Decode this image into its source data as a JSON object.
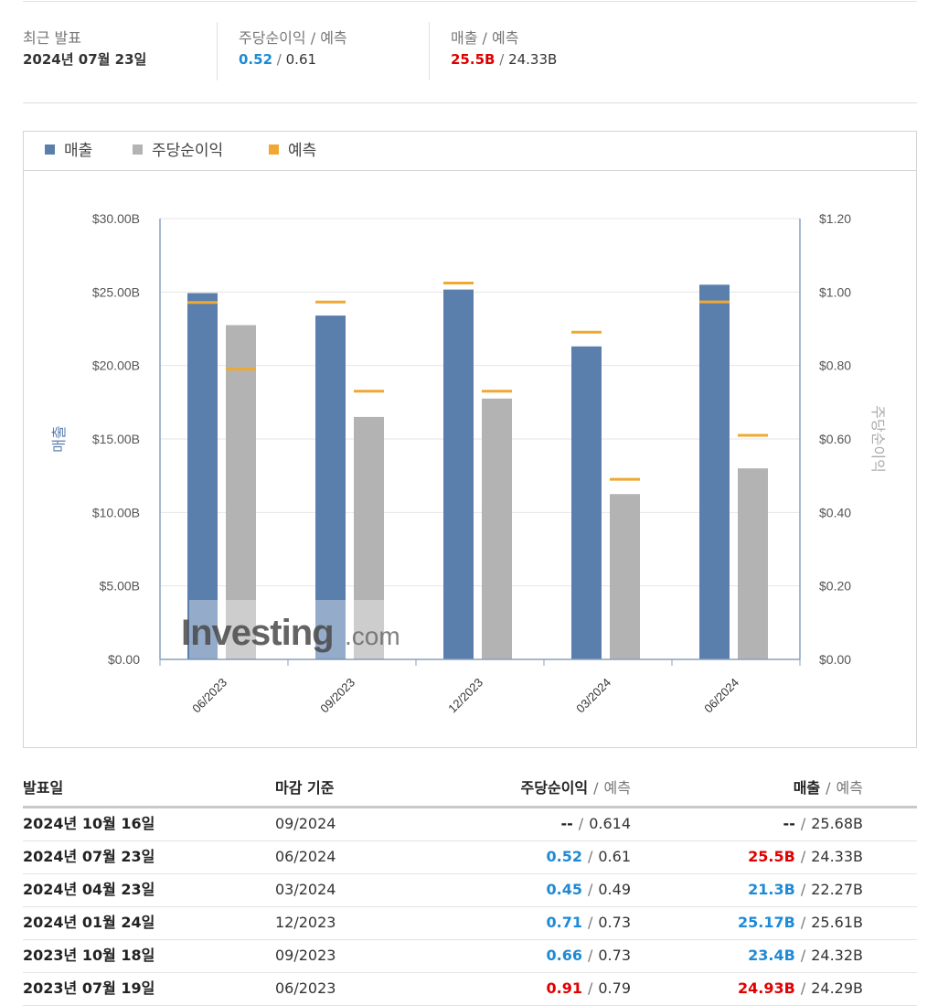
{
  "summary": {
    "latest_label": "최근 발표",
    "latest_date": "2024년 07월 23일",
    "eps_label": "주당순이익",
    "eps_forecast_label": "예측",
    "eps_actual": "0.52",
    "eps_forecast": "0.61",
    "rev_label": "매출",
    "rev_forecast_label": "예측",
    "rev_actual": "25.5B",
    "rev_forecast": "24.33B",
    "slash": "/"
  },
  "colors": {
    "revenue": "#5b7fad",
    "eps": "#b3b3b3",
    "forecast": "#f0a830",
    "beat": "#1e8ad6",
    "miss": "#e00000"
  },
  "legend": {
    "revenue": "매출",
    "eps": "주당순이익",
    "forecast": "예측"
  },
  "chart_data": {
    "type": "bar",
    "categories": [
      "06/2023",
      "09/2023",
      "12/2023",
      "03/2024",
      "06/2024"
    ],
    "series": [
      {
        "name": "매출",
        "axis": "left",
        "values": [
          24.93,
          23.4,
          25.17,
          21.3,
          25.5
        ],
        "forecast": [
          24.29,
          24.32,
          25.61,
          22.27,
          24.33
        ]
      },
      {
        "name": "주당순이익",
        "axis": "right",
        "values": [
          0.91,
          0.66,
          0.71,
          0.45,
          0.52
        ],
        "forecast": [
          0.79,
          0.73,
          0.73,
          0.49,
          0.61
        ]
      }
    ],
    "ylabel_left": "매출",
    "ylabel_right": "주당순이익",
    "ylim_left": [
      0,
      30
    ],
    "ylim_right": [
      0,
      1.2
    ],
    "yticks_left": [
      "$0.00",
      "$5.00B",
      "$10.00B",
      "$15.00B",
      "$20.00B",
      "$25.00B",
      "$30.00B"
    ],
    "yticks_right": [
      "$0.00",
      "$0.20",
      "$0.40",
      "$0.60",
      "$0.80",
      "$1.00",
      "$1.20"
    ],
    "grid": true,
    "legend_position": "top-left"
  },
  "watermark": {
    "brand": "Investing",
    "suffix": ".com"
  },
  "table": {
    "headers": {
      "date": "발표일",
      "period": "마감 기준",
      "eps": "주당순이익",
      "eps_sub": "예측",
      "rev": "매출",
      "rev_sub": "예측"
    },
    "rows": [
      {
        "date": "2024년 10월 16일",
        "period": "09/2024",
        "eps": "--",
        "eps_forecast": "0.614",
        "rev": "--",
        "rev_forecast": "25.68B",
        "eps_status": "none",
        "rev_status": "none"
      },
      {
        "date": "2024년 07월 23일",
        "period": "06/2024",
        "eps": "0.52",
        "eps_forecast": "0.61",
        "rev": "25.5B",
        "rev_forecast": "24.33B",
        "eps_status": "beat",
        "rev_status": "miss"
      },
      {
        "date": "2024년 04월 23일",
        "period": "03/2024",
        "eps": "0.45",
        "eps_forecast": "0.49",
        "rev": "21.3B",
        "rev_forecast": "22.27B",
        "eps_status": "beat",
        "rev_status": "beat"
      },
      {
        "date": "2024년 01월 24일",
        "period": "12/2023",
        "eps": "0.71",
        "eps_forecast": "0.73",
        "rev": "25.17B",
        "rev_forecast": "25.61B",
        "eps_status": "beat",
        "rev_status": "beat"
      },
      {
        "date": "2023년 10월 18일",
        "period": "09/2023",
        "eps": "0.66",
        "eps_forecast": "0.73",
        "rev": "23.4B",
        "rev_forecast": "24.32B",
        "eps_status": "beat",
        "rev_status": "beat"
      },
      {
        "date": "2023년 07월 19일",
        "period": "06/2023",
        "eps": "0.91",
        "eps_forecast": "0.79",
        "rev": "24.93B",
        "rev_forecast": "24.29B",
        "eps_status": "miss",
        "rev_status": "miss"
      }
    ]
  }
}
